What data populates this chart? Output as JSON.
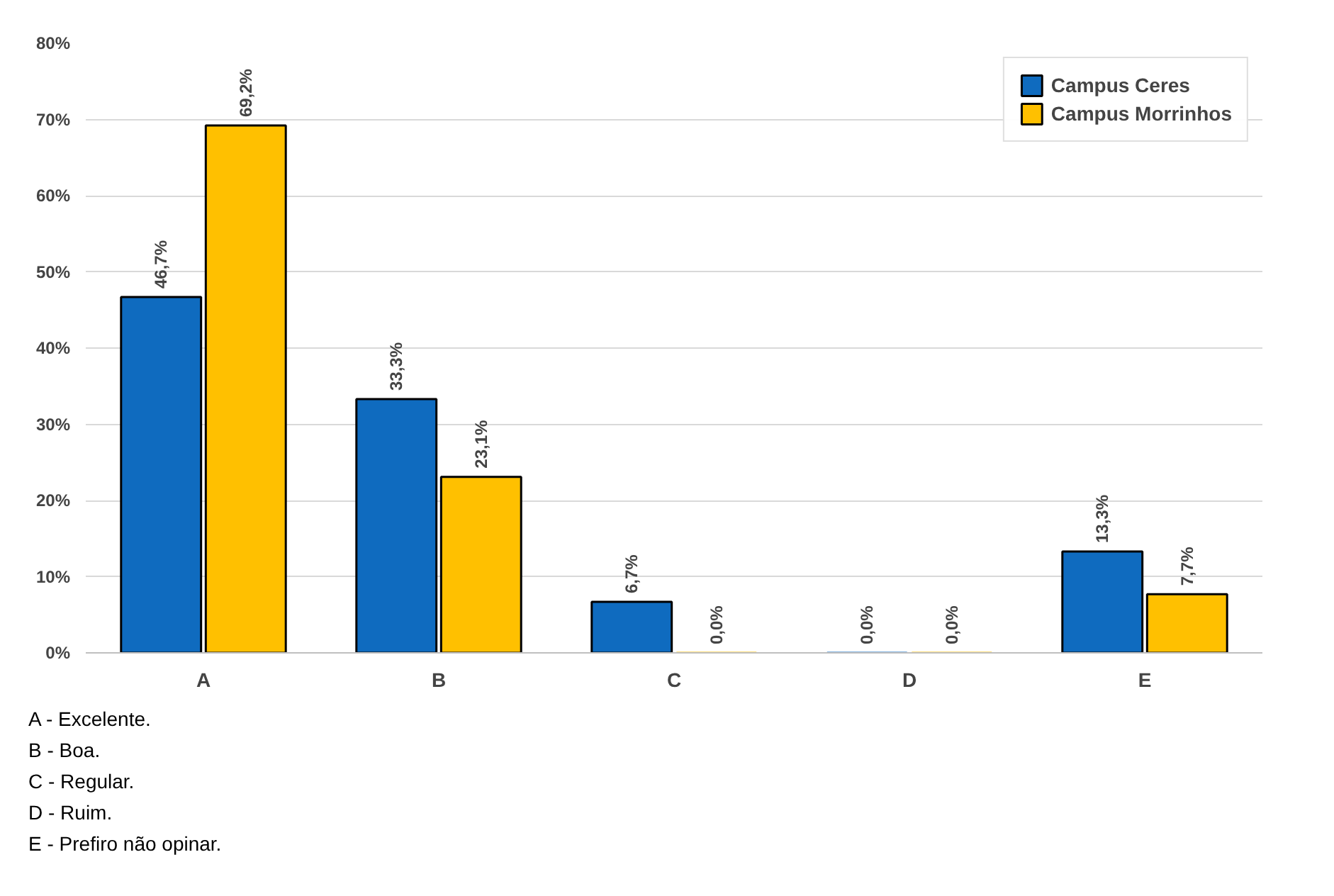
{
  "chart_data": {
    "type": "bar",
    "categories": [
      "A",
      "B",
      "C",
      "D",
      "E"
    ],
    "series": [
      {
        "name": "Campus Ceres",
        "color": "#0f6bbf",
        "values": [
          46.7,
          33.3,
          6.7,
          0,
          13.3
        ],
        "value_labels": [
          "46,7%",
          "33,3%",
          "6,7%",
          "0,0%",
          "13,3%"
        ]
      },
      {
        "name": "Campus Morrinhos",
        "color": "#ffc000",
        "values": [
          69.2,
          23.1,
          0,
          0,
          7.7
        ],
        "value_labels": [
          "69,2%",
          "23,1%",
          "0,0%",
          "0,0%",
          "7,7%"
        ]
      }
    ],
    "ylim": [
      0,
      80
    ],
    "yticks": [
      {
        "value": 0,
        "label": "0%"
      },
      {
        "value": 10,
        "label": "10%"
      },
      {
        "value": 20,
        "label": "20%"
      },
      {
        "value": 30,
        "label": "30%"
      },
      {
        "value": 40,
        "label": "40%"
      },
      {
        "value": 50,
        "label": "50%"
      },
      {
        "value": 60,
        "label": "60%"
      },
      {
        "value": 70,
        "label": "70%"
      },
      {
        "value": 80,
        "label": "80%"
      }
    ],
    "grid": "y",
    "legend": "top right",
    "annotations": [
      "A - Excelente.",
      "B - Boa.",
      "C - Regular.",
      "D - Ruim.",
      "E - Prefiro não opinar."
    ]
  }
}
